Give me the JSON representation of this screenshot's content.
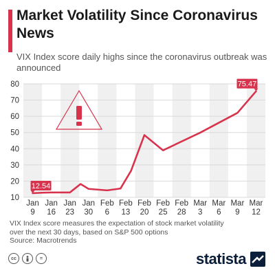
{
  "header": {
    "title": "Market Volatility Since Coronavirus News",
    "subtitle": "VIX Index score daily highs since the coronavirus outbreak was announced"
  },
  "colors": {
    "accent": "#d7334d",
    "band": "#f0f0f0",
    "grid": "#d9d9d9",
    "brand_navy": "#0b1f3a"
  },
  "chart_data": {
    "type": "line",
    "categories": [
      [
        "Jan",
        "9"
      ],
      [
        "Jan",
        "16"
      ],
      [
        "Jan",
        "23"
      ],
      [
        "Jan",
        "30"
      ],
      [
        "Feb",
        "6"
      ],
      [
        "Feb",
        "13"
      ],
      [
        "Feb",
        "20"
      ],
      [
        "Feb",
        "25"
      ],
      [
        "Feb",
        "28"
      ],
      [
        "Mar",
        "3"
      ],
      [
        "Mar",
        "6"
      ],
      [
        "Mar",
        "9"
      ],
      [
        "Mar",
        "12"
      ]
    ],
    "x": [
      "2020-01-09",
      "2020-01-16",
      "2020-01-23",
      "2020-01-30",
      "2020-02-06",
      "2020-02-13",
      "2020-02-20",
      "2020-02-25",
      "2020-02-28",
      "2020-03-03",
      "2020-03-06",
      "2020-03-09",
      "2020-03-12"
    ],
    "points": [
      {
        "date": "2020-01-09",
        "value": 12.54
      },
      {
        "date": "2020-01-13",
        "value": 12.9
      },
      {
        "date": "2020-01-16",
        "value": 13.0
      },
      {
        "date": "2020-01-23",
        "value": 13.0
      },
      {
        "date": "2020-01-27",
        "value": 18.2
      },
      {
        "date": "2020-01-30",
        "value": 15.2
      },
      {
        "date": "2020-02-06",
        "value": 14.3
      },
      {
        "date": "2020-02-11",
        "value": 15.4
      },
      {
        "date": "2020-02-15",
        "value": 26.4
      },
      {
        "date": "2020-02-20",
        "value": 48.4
      },
      {
        "date": "2020-02-25",
        "value": 39.0
      },
      {
        "date": "2020-03-03",
        "value": 49.9
      },
      {
        "date": "2020-03-09",
        "value": 62.1
      },
      {
        "date": "2020-03-12",
        "value": 75.47
      }
    ],
    "data_labels": [
      {
        "date": "2020-01-09",
        "text": "12.54"
      },
      {
        "date": "2020-03-12",
        "text": "75.47"
      }
    ],
    "ylim": [
      10,
      80
    ],
    "yticks": [
      10,
      20,
      30,
      40,
      50,
      60,
      70,
      80
    ],
    "grid": true,
    "xlabel": "",
    "ylabel": "",
    "title": "Market Volatility Since Coronavirus News"
  },
  "footnote": {
    "line1": "VIX Index score measures the expectation of stock market volatility",
    "line2": "over the next 30 days, based on S&P 500 options",
    "line3": "Source: Macrotrends"
  },
  "brand": {
    "name": "statista"
  },
  "license_icons": [
    "creative-commons-icon",
    "attribution-icon",
    "no-derivatives-icon"
  ]
}
